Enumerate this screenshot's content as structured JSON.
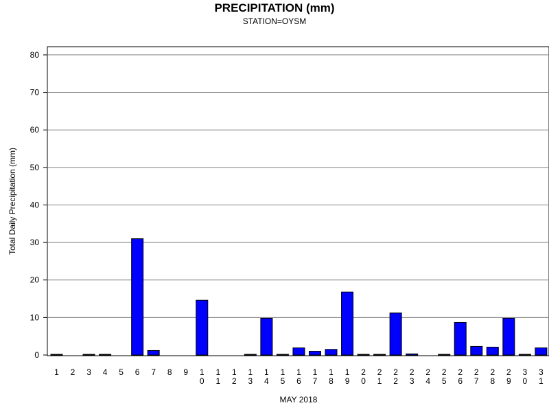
{
  "chart_data": {
    "type": "bar",
    "title": "PRECIPITATION (mm)",
    "subtitle": "STATION=OYSM",
    "xlabel": "MAY 2018",
    "ylabel": "Total Daily Precipitation (mm)",
    "ylim": [
      0,
      82
    ],
    "yticks": [
      "0",
      "10",
      "20",
      "30",
      "40",
      "50",
      "60",
      "70",
      "80"
    ],
    "grid": true,
    "bar_color": "#0000ff",
    "categories": [
      {
        "l1": "1",
        "l2": ""
      },
      {
        "l1": "2",
        "l2": ""
      },
      {
        "l1": "3",
        "l2": ""
      },
      {
        "l1": "4",
        "l2": ""
      },
      {
        "l1": "5",
        "l2": ""
      },
      {
        "l1": "6",
        "l2": ""
      },
      {
        "l1": "7",
        "l2": ""
      },
      {
        "l1": "8",
        "l2": ""
      },
      {
        "l1": "9",
        "l2": ""
      },
      {
        "l1": "1",
        "l2": "0"
      },
      {
        "l1": "1",
        "l2": "1"
      },
      {
        "l1": "1",
        "l2": "2"
      },
      {
        "l1": "1",
        "l2": "3"
      },
      {
        "l1": "1",
        "l2": "4"
      },
      {
        "l1": "1",
        "l2": "5"
      },
      {
        "l1": "1",
        "l2": "6"
      },
      {
        "l1": "1",
        "l2": "7"
      },
      {
        "l1": "1",
        "l2": "8"
      },
      {
        "l1": "1",
        "l2": "9"
      },
      {
        "l1": "2",
        "l2": "0"
      },
      {
        "l1": "2",
        "l2": "1"
      },
      {
        "l1": "2",
        "l2": "2"
      },
      {
        "l1": "2",
        "l2": "3"
      },
      {
        "l1": "2",
        "l2": "4"
      },
      {
        "l1": "2",
        "l2": "5"
      },
      {
        "l1": "2",
        "l2": "6"
      },
      {
        "l1": "2",
        "l2": "7"
      },
      {
        "l1": "2",
        "l2": "8"
      },
      {
        "l1": "2",
        "l2": "9"
      },
      {
        "l1": "3",
        "l2": "0"
      },
      {
        "l1": "3",
        "l2": "1"
      }
    ],
    "values": [
      0.1,
      null,
      0.1,
      0.1,
      null,
      31.0,
      1.2,
      null,
      null,
      14.6,
      null,
      null,
      0.1,
      9.8,
      0.1,
      1.9,
      1.0,
      1.5,
      16.8,
      0.1,
      0.1,
      11.2,
      0.3,
      null,
      0.1,
      8.7,
      2.3,
      2.1,
      9.8,
      0.1,
      1.9
    ]
  }
}
